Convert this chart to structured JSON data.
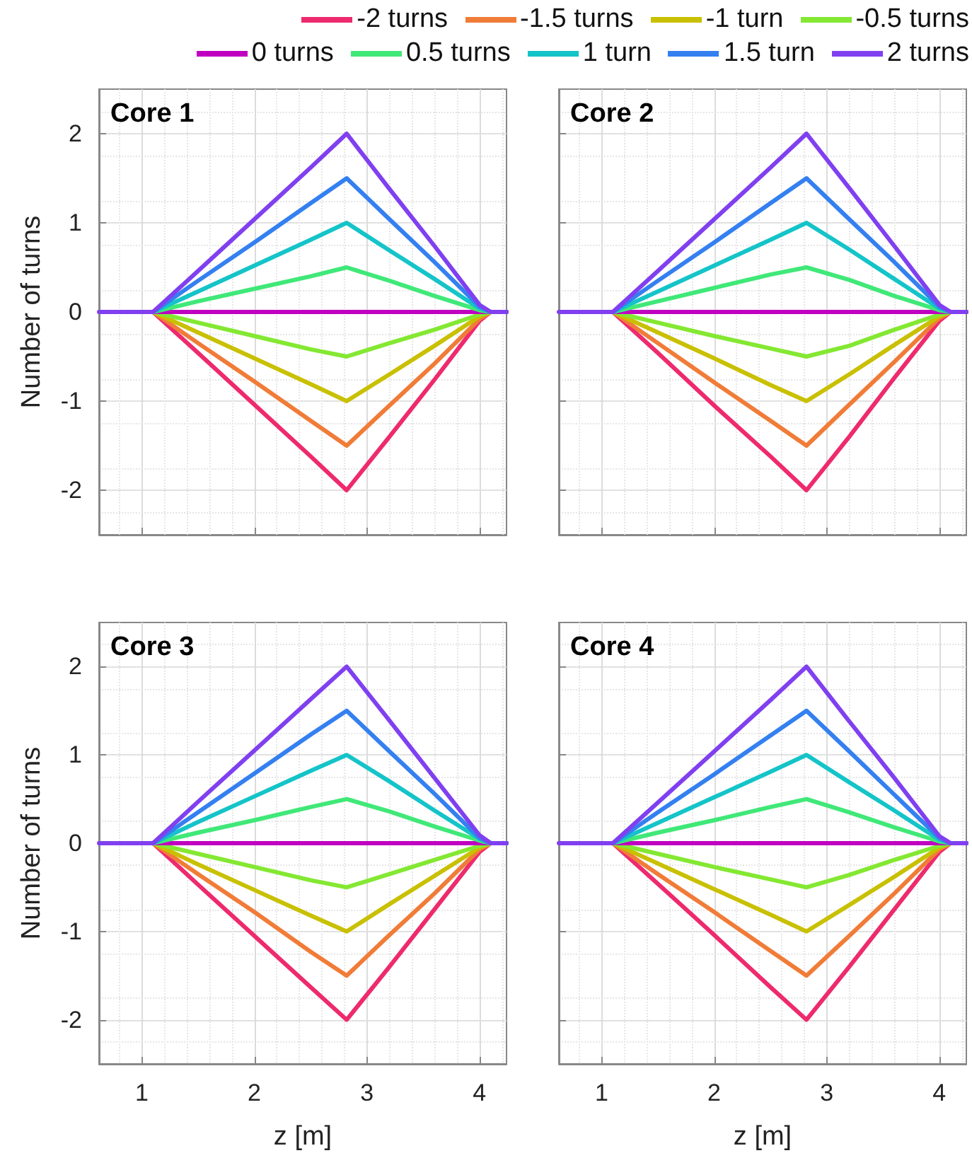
{
  "chart_data": [
    {
      "type": "line",
      "title": "Core 1",
      "ylabel": "Number of turns",
      "xlim": [
        0.62,
        4.24
      ],
      "xticks": [
        1,
        2,
        3,
        4
      ],
      "ylim": [
        -2.5,
        2.5
      ],
      "yticks": [
        -2,
        -1,
        0,
        1,
        2
      ],
      "grid": true,
      "legend": "top",
      "tick_labels": "y",
      "marker": "none",
      "line_style": "solid",
      "x": [
        0.62,
        0.8,
        1.0,
        1.1,
        1.5,
        2.0,
        2.5,
        2.82,
        3.2,
        3.6,
        4.0,
        4.1,
        4.24
      ],
      "series": [
        {
          "name": "-2 turns",
          "color": "#ee2a6e",
          "values": [
            null,
            null,
            null,
            0,
            -0.46,
            -1.04,
            -1.62,
            -2,
            -1.4,
            -0.76,
            -0.1,
            0,
            0
          ]
        },
        {
          "name": "-1.5 turns",
          "color": "#f07c38",
          "values": [
            null,
            null,
            null,
            0,
            -0.35,
            -0.78,
            -1.22,
            -1.5,
            -1.05,
            -0.58,
            -0.08,
            0,
            0
          ]
        },
        {
          "name": "-1 turn",
          "color": "#c8c000",
          "values": [
            null,
            null,
            null,
            0,
            -0.23,
            -0.52,
            -0.81,
            -1,
            -0.7,
            -0.38,
            -0.05,
            0,
            0
          ]
        },
        {
          "name": "-0.5 turns",
          "color": "#84e832",
          "values": [
            null,
            null,
            null,
            0,
            -0.12,
            -0.27,
            -0.42,
            -0.5,
            -0.35,
            -0.2,
            -0.03,
            0,
            0
          ]
        },
        {
          "name": "0 turns",
          "color": "#c000c0",
          "values": [
            null,
            null,
            null,
            0,
            0,
            0,
            0,
            0,
            0,
            0,
            0,
            0,
            0
          ]
        },
        {
          "name": "0.5 turns",
          "color": "#40e878",
          "values": [
            null,
            null,
            null,
            0,
            0.12,
            0.26,
            0.4,
            0.5,
            0.35,
            0.18,
            0.02,
            0,
            0
          ]
        },
        {
          "name": "1 turn",
          "color": "#14c4c8",
          "values": [
            null,
            null,
            null,
            0,
            0.23,
            0.52,
            0.81,
            1,
            0.69,
            0.37,
            0.04,
            0,
            0
          ]
        },
        {
          "name": "1.5 turn",
          "color": "#3480f0",
          "values": [
            null,
            null,
            null,
            0,
            0.35,
            0.78,
            1.22,
            1.5,
            1.04,
            0.56,
            0.06,
            0,
            0
          ]
        },
        {
          "name": "2 turns",
          "color": "#8040f0",
          "values": [
            0,
            0,
            0,
            0,
            0.46,
            1.04,
            1.62,
            2,
            1.38,
            0.74,
            0.08,
            0,
            0
          ]
        }
      ]
    },
    {
      "type": "line",
      "title": "Core 2",
      "xlim": [
        0.62,
        4.24
      ],
      "xticks": [
        1,
        2,
        3,
        4
      ],
      "ylim": [
        -2.5,
        2.5
      ],
      "yticks": [
        -2,
        -1,
        0,
        1,
        2
      ],
      "grid": true,
      "tick_labels": false,
      "marker": "none",
      "line_style": "solid",
      "x": [
        0.62,
        0.8,
        1.0,
        1.1,
        1.5,
        2.0,
        2.5,
        2.82,
        3.2,
        3.6,
        4.0,
        4.1,
        4.24
      ],
      "series": [
        {
          "name": "-2 turns",
          "color": "#ee2a6e",
          "values": [
            null,
            null,
            null,
            0,
            -0.46,
            -1.05,
            -1.62,
            -2,
            -1.4,
            -0.74,
            -0.1,
            0,
            0
          ]
        },
        {
          "name": "-1.5 turns",
          "color": "#f07c38",
          "values": [
            null,
            null,
            null,
            0,
            -0.35,
            -0.79,
            -1.22,
            -1.5,
            -1.04,
            -0.56,
            -0.07,
            0,
            0
          ]
        },
        {
          "name": "-1 turn",
          "color": "#c8c000",
          "values": [
            null,
            null,
            null,
            0,
            -0.23,
            -0.52,
            -0.82,
            -1,
            -0.7,
            -0.37,
            -0.05,
            0,
            0
          ]
        },
        {
          "name": "-0.5 turns",
          "color": "#84e832",
          "values": [
            null,
            null,
            null,
            0,
            -0.12,
            -0.27,
            -0.41,
            -0.5,
            -0.38,
            -0.2,
            -0.03,
            0,
            0
          ]
        },
        {
          "name": "0 turns",
          "color": "#c000c0",
          "values": [
            null,
            null,
            null,
            0,
            0,
            0,
            0,
            0,
            0,
            0,
            0,
            0,
            0
          ]
        },
        {
          "name": "0.5 turns",
          "color": "#40e878",
          "values": [
            null,
            null,
            null,
            0,
            0.12,
            0.27,
            0.42,
            0.5,
            0.36,
            0.18,
            0.02,
            0,
            0
          ]
        },
        {
          "name": "1 turn",
          "color": "#14c4c8",
          "values": [
            null,
            null,
            null,
            0,
            0.23,
            0.52,
            0.81,
            1,
            0.7,
            0.37,
            0.04,
            0,
            0
          ]
        },
        {
          "name": "1.5 turn",
          "color": "#3480f0",
          "values": [
            null,
            null,
            null,
            0,
            0.35,
            0.78,
            1.22,
            1.5,
            1.04,
            0.56,
            0.06,
            0,
            0
          ]
        },
        {
          "name": "2 turns",
          "color": "#8040f0",
          "values": [
            0,
            0,
            0,
            0,
            0.46,
            1.04,
            1.62,
            2,
            1.39,
            0.74,
            0.08,
            0,
            0
          ]
        }
      ]
    },
    {
      "type": "line",
      "title": "Core 3",
      "xlabel": "z [m]",
      "ylabel": "Number of turns",
      "xlim": [
        0.62,
        4.24
      ],
      "xticks": [
        1,
        2,
        3,
        4
      ],
      "ylim": [
        -2.5,
        2.5
      ],
      "yticks": [
        -2,
        -1,
        0,
        1,
        2
      ],
      "grid": true,
      "marker": "none",
      "line_style": "solid",
      "x": [
        0.62,
        0.8,
        1.0,
        1.1,
        1.5,
        2.0,
        2.5,
        2.82,
        3.2,
        3.6,
        4.0,
        4.1,
        4.24
      ],
      "series": [
        {
          "name": "-2 turns",
          "color": "#ee2a6e",
          "values": [
            null,
            null,
            null,
            0,
            -0.47,
            -1.05,
            -1.63,
            -2,
            -1.4,
            -0.75,
            -0.1,
            0,
            0
          ]
        },
        {
          "name": "-1.5 turns",
          "color": "#f07c38",
          "values": [
            null,
            null,
            null,
            0,
            -0.35,
            -0.78,
            -1.23,
            -1.5,
            -1.04,
            -0.57,
            -0.07,
            0,
            0
          ]
        },
        {
          "name": "-1 turn",
          "color": "#c8c000",
          "values": [
            null,
            null,
            null,
            0,
            -0.24,
            -0.53,
            -0.82,
            -1,
            -0.69,
            -0.37,
            -0.05,
            0,
            0
          ]
        },
        {
          "name": "-0.5 turns",
          "color": "#84e832",
          "values": [
            null,
            null,
            null,
            0,
            -0.12,
            -0.27,
            -0.42,
            -0.5,
            -0.35,
            -0.19,
            -0.03,
            0,
            0
          ]
        },
        {
          "name": "0 turns",
          "color": "#c000c0",
          "values": [
            null,
            null,
            null,
            0,
            0,
            0,
            0,
            0,
            0,
            0,
            0,
            0,
            0
          ]
        },
        {
          "name": "0.5 turns",
          "color": "#40e878",
          "values": [
            null,
            null,
            null,
            0,
            0.12,
            0.26,
            0.41,
            0.5,
            0.36,
            0.19,
            0.03,
            0,
            0
          ]
        },
        {
          "name": "1 turn",
          "color": "#14c4c8",
          "values": [
            null,
            null,
            null,
            0,
            0.24,
            0.53,
            0.82,
            1,
            0.7,
            0.37,
            0.05,
            0,
            0
          ]
        },
        {
          "name": "1.5 turn",
          "color": "#3480f0",
          "values": [
            null,
            null,
            null,
            0,
            0.35,
            0.79,
            1.23,
            1.5,
            1.04,
            0.56,
            0.06,
            0,
            0
          ]
        },
        {
          "name": "2 turns",
          "color": "#8040f0",
          "values": [
            0,
            0,
            0,
            0,
            0.47,
            1.05,
            1.63,
            2,
            1.39,
            0.74,
            0.09,
            0,
            0
          ]
        }
      ]
    },
    {
      "type": "line",
      "title": "Core 4",
      "xlabel": "z [m]",
      "xlim": [
        0.62,
        4.24
      ],
      "xticks": [
        1,
        2,
        3,
        4
      ],
      "ylim": [
        -2.5,
        2.5
      ],
      "yticks": [
        -2,
        -1,
        0,
        1,
        2
      ],
      "grid": true,
      "tick_labels": "x",
      "marker": "none",
      "line_style": "solid",
      "x": [
        0.62,
        0.8,
        1.0,
        1.1,
        1.5,
        2.0,
        2.5,
        2.82,
        3.2,
        3.6,
        4.0,
        4.1,
        4.24
      ],
      "series": [
        {
          "name": "-2 turns",
          "color": "#ee2a6e",
          "values": [
            null,
            null,
            null,
            0,
            -0.46,
            -1.04,
            -1.63,
            -2,
            -1.4,
            -0.75,
            -0.1,
            0,
            0
          ]
        },
        {
          "name": "-1.5 turns",
          "color": "#f07c38",
          "values": [
            null,
            null,
            null,
            0,
            -0.35,
            -0.78,
            -1.22,
            -1.5,
            -1.05,
            -0.57,
            -0.07,
            0,
            0
          ]
        },
        {
          "name": "-1 turn",
          "color": "#c8c000",
          "values": [
            null,
            null,
            null,
            0,
            -0.23,
            -0.52,
            -0.81,
            -1,
            -0.7,
            -0.38,
            -0.05,
            0,
            0
          ]
        },
        {
          "name": "-0.5 turns",
          "color": "#84e832",
          "values": [
            null,
            null,
            null,
            0,
            -0.12,
            -0.27,
            -0.41,
            -0.5,
            -0.36,
            -0.19,
            -0.03,
            0,
            0
          ]
        },
        {
          "name": "0 turns",
          "color": "#c000c0",
          "values": [
            null,
            null,
            null,
            0,
            0,
            0,
            0,
            0,
            0,
            0,
            0,
            0,
            0
          ]
        },
        {
          "name": "0.5 turns",
          "color": "#40e878",
          "values": [
            null,
            null,
            null,
            0,
            0.12,
            0.26,
            0.41,
            0.5,
            0.35,
            0.18,
            0.02,
            0,
            0
          ]
        },
        {
          "name": "1 turn",
          "color": "#14c4c8",
          "values": [
            null,
            null,
            null,
            0,
            0.23,
            0.52,
            0.81,
            1,
            0.69,
            0.37,
            0.04,
            0,
            0
          ]
        },
        {
          "name": "1.5 turn",
          "color": "#3480f0",
          "values": [
            null,
            null,
            null,
            0,
            0.35,
            0.78,
            1.22,
            1.5,
            1.04,
            0.55,
            0.06,
            0,
            0
          ]
        },
        {
          "name": "2 turns",
          "color": "#8040f0",
          "values": [
            0,
            0,
            0,
            0,
            0.46,
            1.04,
            1.62,
            2,
            1.38,
            0.74,
            0.08,
            0,
            0
          ]
        }
      ]
    }
  ]
}
